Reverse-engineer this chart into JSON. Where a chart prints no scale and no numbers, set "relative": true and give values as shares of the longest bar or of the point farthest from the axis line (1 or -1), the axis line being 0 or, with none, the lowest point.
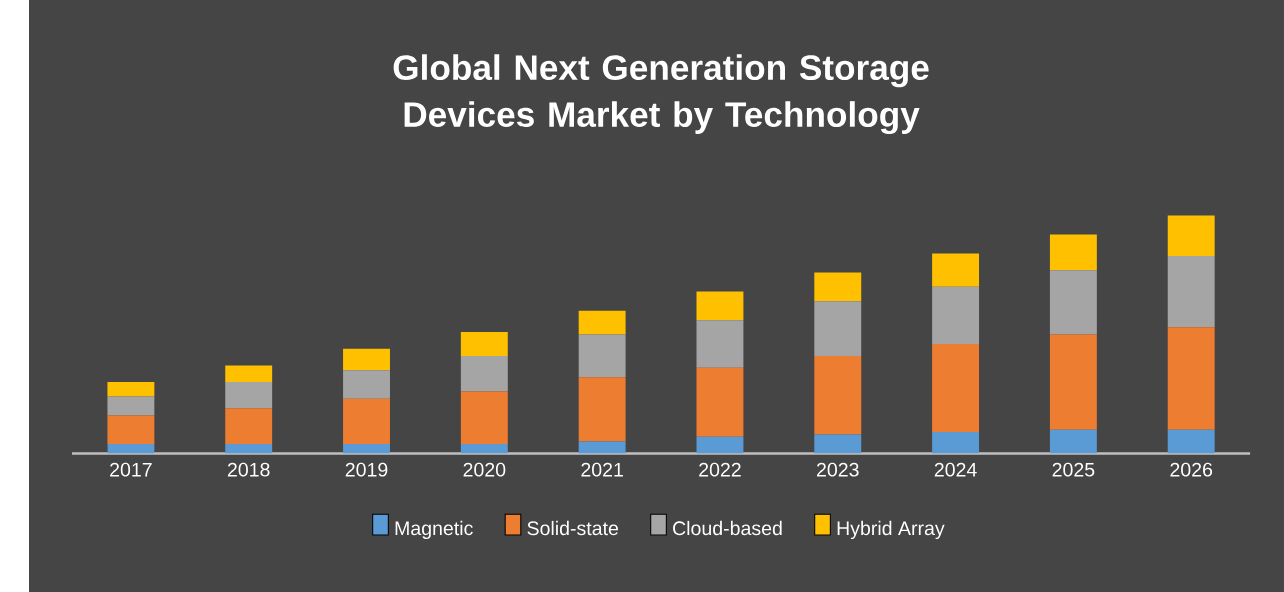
{
  "chart_data": {
    "type": "bar",
    "title": "Global Next Generation Storage Devices Market by Technology",
    "stacked": true,
    "relative": true,
    "legend": "bottom",
    "categories": [
      "2017",
      "2018",
      "2019",
      "2020",
      "2021",
      "2022",
      "2023",
      "2024",
      "2025",
      "2026"
    ],
    "series": [
      {
        "name": "Magnetic",
        "color": "#5b9bd5",
        "values": [
          0.04,
          0.04,
          0.04,
          0.04,
          0.05,
          0.07,
          0.08,
          0.09,
          0.1,
          0.1
        ]
      },
      {
        "name": "Solid-state",
        "color": "#ed7d31",
        "values": [
          0.12,
          0.15,
          0.19,
          0.22,
          0.27,
          0.29,
          0.33,
          0.37,
          0.4,
          0.43
        ]
      },
      {
        "name": "Cloud-based",
        "color": "#a5a5a5",
        "values": [
          0.08,
          0.11,
          0.12,
          0.15,
          0.18,
          0.2,
          0.23,
          0.24,
          0.27,
          0.3
        ]
      },
      {
        "name": "Hybrid Array",
        "color": "#ffc000",
        "values": [
          0.06,
          0.07,
          0.09,
          0.1,
          0.1,
          0.12,
          0.12,
          0.14,
          0.15,
          0.17
        ]
      }
    ]
  }
}
